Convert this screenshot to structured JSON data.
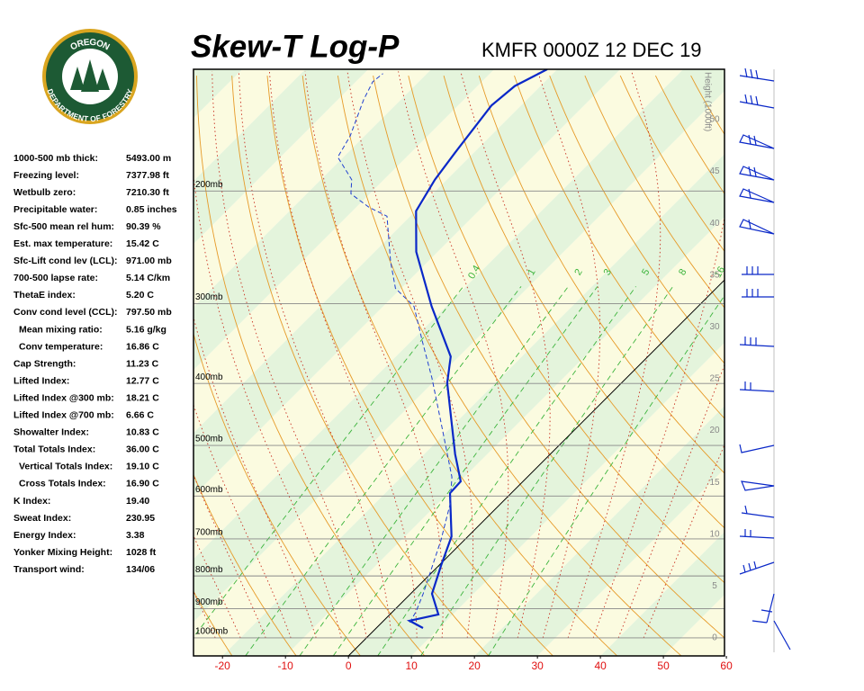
{
  "chart_data": {
    "type": "skew-t",
    "title": "Skew-T Log-P",
    "subtitle": "KMFR 0000Z 12 DEC 19",
    "logo": {
      "top": "OREGON",
      "bottom": "DEPARTMENT OF FORESTRY"
    },
    "xlim": [
      -24.6,
      59.7
    ],
    "xticks": [
      -20,
      -10,
      0,
      10,
      20,
      30,
      40,
      50,
      60
    ],
    "ylim": [
      1067,
      129
    ],
    "log_y": true,
    "yticks": [
      {
        "value": 1000,
        "label": "1000mb"
      },
      {
        "value": 900,
        "label": "900mb"
      },
      {
        "value": 800,
        "label": "800mb"
      },
      {
        "value": 700,
        "label": "700mb"
      },
      {
        "value": 600,
        "label": "600mb"
      },
      {
        "value": 500,
        "label": "500mb"
      },
      {
        "value": 400,
        "label": "400mb"
      },
      {
        "value": 300,
        "label": "300mb"
      },
      {
        "value": 200,
        "label": "200mb"
      }
    ],
    "height_axis": {
      "label": "Height (1000ft)",
      "ticks": [
        0,
        5,
        10,
        15,
        20,
        25,
        30,
        35,
        40,
        45,
        50
      ]
    },
    "mixing_ratio_lines": [
      0.4,
      1,
      2,
      3,
      5,
      8,
      16
    ],
    "profiles": [
      {
        "color": "#0a28c8",
        "style": "solid",
        "pressure": [
          965,
          940,
          919,
          853,
          769,
          694,
          594,
          569,
          516,
          399,
          363,
          303,
          249,
          215,
          192,
          174,
          147,
          137,
          129
        ],
        "temperature": [
          7.4,
          4.1,
          7.7,
          3.4,
          0.3,
          -2.6,
          -9.7,
          -9.9,
          -15.1,
          -27.7,
          -31.3,
          -42.3,
          -53.4,
          -59.9,
          -61.9,
          -63,
          -64.7,
          -64.1,
          -61.6
        ]
      },
      {
        "color": "#2040d0",
        "style": "dashed",
        "pressure": [
          946,
          910,
          853,
          703,
          617,
          560,
          461,
          392,
          345,
          303,
          284,
          258,
          219,
          212,
          202,
          192,
          177,
          164,
          144,
          135,
          131
        ],
        "temperature": [
          4.4,
          3.7,
          2.0,
          -3.7,
          -8,
          -12,
          -22.3,
          -30.9,
          -38,
          -45.1,
          -50.9,
          -55.9,
          -63.7,
          -68,
          -73,
          -75.1,
          -80.9,
          -82.3,
          -85.9,
          -87.3,
          -87
        ]
      }
    ],
    "indices": [
      {
        "label": "1000-500 mb thick:",
        "value": "5493.00 m"
      },
      {
        "label": "Freezing level:",
        "value": "7377.98 ft"
      },
      {
        "label": "Wetbulb zero:",
        "value": "7210.30 ft"
      },
      {
        "label": "Precipitable water:",
        "value": "0.85 inches"
      },
      {
        "label": "Sfc-500 mean rel hum:",
        "value": "90.39 %"
      },
      {
        "label": "Est. max temperature:",
        "value": "15.42 C"
      },
      {
        "label": "Sfc-Lift cond lev (LCL):",
        "value": "971.00 mb"
      },
      {
        "label": "700-500 lapse rate:",
        "value": "5.14 C/km"
      },
      {
        "label": "ThetaE index:",
        "value": "5.20 C"
      },
      {
        "label": "Conv cond level (CCL):",
        "value": "797.50 mb"
      },
      {
        "label": "Mean mixing ratio:",
        "value": "5.16 g/kg"
      },
      {
        "label": "Conv temperature:",
        "value": "16.86 C"
      },
      {
        "label": "Cap Strength:",
        "value": "11.23 C"
      },
      {
        "label": "Lifted Index:",
        "value": "12.77 C"
      },
      {
        "label": "Lifted Index @300 mb:",
        "value": "18.21 C"
      },
      {
        "label": "Lifted Index @700 mb:",
        "value": "6.66 C"
      },
      {
        "label": "Showalter Index:",
        "value": "10.83 C"
      },
      {
        "label": "Total Totals Index:",
        "value": "36.00 C"
      },
      {
        "label": "Vertical Totals Index:",
        "value": "19.10 C"
      },
      {
        "label": "Cross Totals Index:",
        "value": "16.90 C"
      },
      {
        "label": "K Index:",
        "value": "19.40"
      },
      {
        "label": "Sweat Index:",
        "value": "230.95"
      },
      {
        "label": "Energy Index:",
        "value": "3.38"
      },
      {
        "label": "Yonker Mixing Height:",
        "value": "1028 ft"
      },
      {
        "label": "Transport wind:",
        "value": "134/06"
      }
    ]
  }
}
